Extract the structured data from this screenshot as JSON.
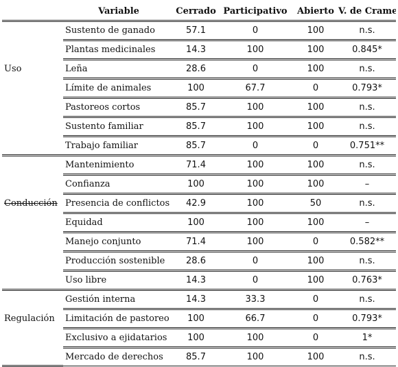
{
  "headers": [
    "",
    "Variable",
    "Cerrado",
    "Participativo",
    "Abierto",
    "V. de Cramer"
  ],
  "groups": {
    "uso": "Uso",
    "conduccion": "Conducción",
    "regulacion": "Regulación"
  },
  "rows": [
    {
      "variable": "Sustento de ganado",
      "cerrado": "57.1",
      "participativo": "0",
      "abierto": "100",
      "cramer": "n.s."
    },
    {
      "variable": "Plantas medicinales",
      "cerrado": "14.3",
      "participativo": "100",
      "abierto": "100",
      "cramer": "0.845*"
    },
    {
      "variable": "Leña",
      "cerrado": "28.6",
      "participativo": "0",
      "abierto": "100",
      "cramer": "n.s."
    },
    {
      "variable": "Límite de animales",
      "cerrado": "100",
      "participativo": "67.7",
      "abierto": "0",
      "cramer": "0.793*"
    },
    {
      "variable": "Pastoreos cortos",
      "cerrado": "85.7",
      "participativo": "100",
      "abierto": "100",
      "cramer": "n.s."
    },
    {
      "variable": "Sustento familiar",
      "cerrado": "85.7",
      "participativo": "100",
      "abierto": "100",
      "cramer": "n.s."
    },
    {
      "variable": "Trabajo familiar",
      "cerrado": "85.7",
      "participativo": "0",
      "abierto": "0",
      "cramer": "0.751**"
    },
    {
      "variable": "Mantenimiento",
      "cerrado": "71.4",
      "participativo": "100",
      "abierto": "100",
      "cramer": "n.s."
    },
    {
      "variable": "Confianza",
      "cerrado": "100",
      "participativo": "100",
      "abierto": "100",
      "cramer": "–"
    },
    {
      "variable": "Presencia de conflictos",
      "cerrado": "42.9",
      "participativo": "100",
      "abierto": "50",
      "cramer": "n.s."
    },
    {
      "variable": "Equidad",
      "cerrado": "100",
      "participativo": "100",
      "abierto": "100",
      "cramer": "–"
    },
    {
      "variable": "Manejo conjunto",
      "cerrado": "71.4",
      "participativo": "100",
      "abierto": "0",
      "cramer": "0.582**"
    },
    {
      "variable": "Producción sostenible",
      "cerrado": "28.6",
      "participativo": "0",
      "abierto": "100",
      "cramer": "n.s."
    },
    {
      "variable": "Uso libre",
      "cerrado": "14.3",
      "participativo": "0",
      "abierto": "100",
      "cramer": "0.763*"
    },
    {
      "variable": "Gestión interna",
      "cerrado": "14.3",
      "participativo": "33.3",
      "abierto": "0",
      "cramer": "n.s."
    },
    {
      "variable": "Limitación de pastoreo",
      "cerrado": "100",
      "participativo": "66.7",
      "abierto": "0",
      "cramer": "0.793*"
    },
    {
      "variable": "Exclusivo a ejidatarios",
      "cerrado": "100",
      "participativo": "100",
      "abierto": "0",
      "cramer": "1*"
    },
    {
      "variable": "Mercado de derechos",
      "cerrado": "85.7",
      "participativo": "100",
      "abierto": "100",
      "cramer": "n.s."
    }
  ]
}
